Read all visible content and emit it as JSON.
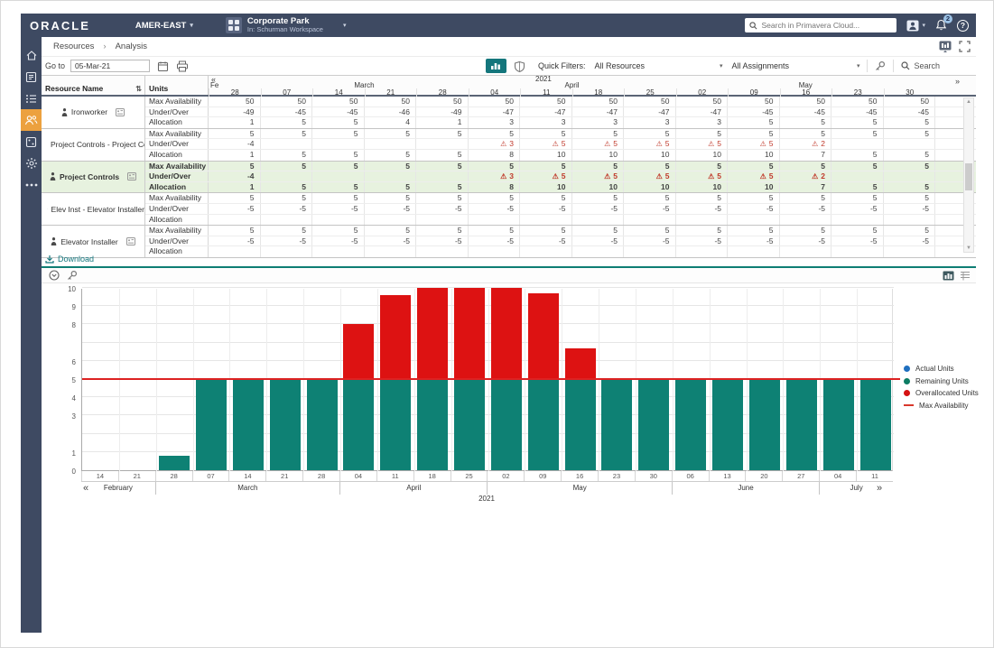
{
  "topbar": {
    "brand": "ORACLE",
    "org": "AMER-EAST",
    "workspace_title": "Corporate Park",
    "workspace_subtitle": "In: Schurman Workspace",
    "search_placeholder": "Search in Primavera Cloud...",
    "notification_count": "2",
    "help_label": "?"
  },
  "breadcrumb": {
    "items": [
      "Resources",
      "Analysis"
    ],
    "separator": "›"
  },
  "toolbar": {
    "goto_label": "Go to",
    "goto_value": "05-Mar-21",
    "quick_filters_label": "Quick Filters:",
    "resources_filter": "All Resources",
    "assignments_filter": "All Assignments",
    "search_label": "Search"
  },
  "grid": {
    "col_resource": "Resource Name",
    "col_units": "Units",
    "year": "2021",
    "prev": "«",
    "next": "»",
    "month_groups": [
      {
        "label": "Fe",
        "cols": 1
      },
      {
        "label": "March",
        "cols": 4
      },
      {
        "label": "April",
        "cols": 4
      },
      {
        "label": "May",
        "cols": 5
      }
    ],
    "days": [
      "28",
      "07",
      "14",
      "21",
      "28",
      "04",
      "11",
      "18",
      "25",
      "02",
      "09",
      "16",
      "23",
      "30"
    ],
    "unit_rows": [
      "Max Availability",
      "Under/Over",
      "Allocation"
    ],
    "rows": [
      {
        "name": "Ironworker",
        "type": "resource",
        "selected": false,
        "max": [
          "50",
          "50",
          "50",
          "50",
          "50",
          "50",
          "50",
          "50",
          "50",
          "50",
          "50",
          "50",
          "50",
          "50"
        ],
        "under": [
          "-49",
          "-45",
          "-45",
          "-46",
          "-49",
          "-47",
          "-47",
          "-47",
          "-47",
          "-47",
          "-45",
          "-45",
          "-45",
          "-45"
        ],
        "alloc": [
          "1",
          "5",
          "5",
          "4",
          "1",
          "3",
          "3",
          "3",
          "3",
          "3",
          "5",
          "5",
          "5",
          "5"
        ]
      },
      {
        "name": "Project Controls - Project Co...",
        "type": "role",
        "selected": false,
        "max": [
          "5",
          "5",
          "5",
          "5",
          "5",
          "5",
          "5",
          "5",
          "5",
          "5",
          "5",
          "5",
          "5",
          "5"
        ],
        "under": [
          "-4",
          "",
          "",
          "",
          "",
          "!3",
          "!5",
          "!5",
          "!5",
          "!5",
          "!5",
          "!2",
          "",
          ""
        ],
        "alloc": [
          "1",
          "5",
          "5",
          "5",
          "5",
          "8",
          "10",
          "10",
          "10",
          "10",
          "10",
          "7",
          "5",
          "5"
        ]
      },
      {
        "name": "Project Controls",
        "type": "resource",
        "selected": true,
        "max": [
          "5",
          "5",
          "5",
          "5",
          "5",
          "5",
          "5",
          "5",
          "5",
          "5",
          "5",
          "5",
          "5",
          "5"
        ],
        "under": [
          "-4",
          "",
          "",
          "",
          "",
          "!3",
          "!5",
          "!5",
          "!5",
          "!5",
          "!5",
          "!2",
          "",
          ""
        ],
        "alloc": [
          "1",
          "5",
          "5",
          "5",
          "5",
          "8",
          "10",
          "10",
          "10",
          "10",
          "10",
          "7",
          "5",
          "5"
        ]
      },
      {
        "name": "Elev Inst - Elevator Installer",
        "type": "role",
        "selected": false,
        "max": [
          "5",
          "5",
          "5",
          "5",
          "5",
          "5",
          "5",
          "5",
          "5",
          "5",
          "5",
          "5",
          "5",
          "5"
        ],
        "under": [
          "-5",
          "-5",
          "-5",
          "-5",
          "-5",
          "-5",
          "-5",
          "-5",
          "-5",
          "-5",
          "-5",
          "-5",
          "-5",
          "-5"
        ],
        "alloc": [
          "",
          "",
          "",
          "",
          "",
          "",
          "",
          "",
          "",
          "",
          "",
          "",
          "",
          ""
        ]
      },
      {
        "name": "Elevator Installer",
        "type": "resource",
        "selected": false,
        "max": [
          "5",
          "5",
          "5",
          "5",
          "5",
          "5",
          "5",
          "5",
          "5",
          "5",
          "5",
          "5",
          "5",
          "5"
        ],
        "under": [
          "-5",
          "-5",
          "-5",
          "-5",
          "-5",
          "-5",
          "-5",
          "-5",
          "-5",
          "-5",
          "-5",
          "-5",
          "-5",
          "-5"
        ],
        "alloc": [
          "",
          "",
          "",
          "",
          "",
          "",
          "",
          "",
          "",
          "",
          "",
          "",
          "",
          ""
        ]
      }
    ]
  },
  "download_label": "Download",
  "chart_data": {
    "type": "bar",
    "title": "",
    "x": [
      "14",
      "21",
      "28",
      "07",
      "14",
      "21",
      "28",
      "04",
      "11",
      "18",
      "25",
      "02",
      "09",
      "16",
      "23",
      "30",
      "06",
      "13",
      "20",
      "27",
      "04",
      "11"
    ],
    "month_groups": [
      {
        "label": "February",
        "count": 2
      },
      {
        "label": "March",
        "count": 5
      },
      {
        "label": "April",
        "count": 4
      },
      {
        "label": "May",
        "count": 5
      },
      {
        "label": "June",
        "count": 4
      },
      {
        "label": "July",
        "count": 2
      }
    ],
    "year": "2021",
    "values": [
      0,
      0,
      0.8,
      5,
      5,
      5,
      5,
      8,
      9.6,
      10,
      10,
      10,
      9.7,
      6.7,
      5,
      5,
      5,
      5,
      5,
      5,
      5,
      5
    ],
    "series": [
      {
        "name": "Remaining Units",
        "color": "#0e8174",
        "values": [
          0,
          0,
          0.8,
          5,
          5,
          5,
          5,
          5,
          5,
          5,
          5,
          5,
          5,
          5,
          5,
          5,
          5,
          5,
          5,
          5,
          5,
          5
        ]
      },
      {
        "name": "Overallocated Units",
        "color": "#dd1212",
        "values": [
          0,
          0,
          0,
          0,
          0,
          0,
          0,
          3,
          4.6,
          5,
          5,
          5,
          4.7,
          1.7,
          0,
          0,
          0,
          0,
          0,
          0,
          0,
          0
        ]
      }
    ],
    "max_availability": 5,
    "max_availability_color": "#dd2222",
    "ylim": [
      0,
      10
    ],
    "ytick_labels": [
      10,
      9,
      8,
      6,
      5,
      4,
      3,
      1,
      0
    ],
    "grid": true,
    "legend_position": "right",
    "prev": "«",
    "next": "»"
  },
  "legend": [
    {
      "label": "Actual Units",
      "color": "#1f6fbf",
      "shape": "dot"
    },
    {
      "label": "Remaining Units",
      "color": "#0d7c63",
      "shape": "dot"
    },
    {
      "label": "Overallocated Units",
      "color": "#d51212",
      "shape": "dot"
    },
    {
      "label": "Max Availability",
      "color": "#d9382c",
      "shape": "line"
    }
  ],
  "colors": {
    "header_navy": "#3e4a62",
    "active_orange": "#eca13f",
    "teal_accent": "#0f7e74",
    "selected_row_bg": "#e7f2df",
    "warning_red": "#c0392b"
  }
}
